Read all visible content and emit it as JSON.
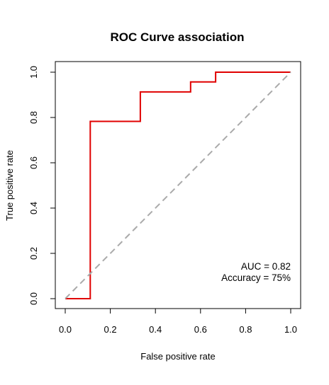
{
  "chart_data": {
    "type": "line",
    "title": "ROC Curve association",
    "xlabel": "False positive rate",
    "ylabel": "True positive rate",
    "xlim": [
      0,
      1
    ],
    "ylim": [
      0,
      1
    ],
    "xticks": [
      0.0,
      0.2,
      0.4,
      0.6,
      0.8,
      1.0
    ],
    "yticks": [
      0.0,
      0.2,
      0.4,
      0.6,
      0.8,
      1.0
    ],
    "xtick_labels": [
      "0.0",
      "0.2",
      "0.4",
      "0.6",
      "0.8",
      "1.0"
    ],
    "ytick_labels": [
      "0.0",
      "0.2",
      "0.4",
      "0.6",
      "0.8",
      "1.0"
    ],
    "grid": false,
    "series": [
      {
        "color": "#e00000",
        "style": "step",
        "x": [
          0.0,
          0.111,
          0.111,
          0.333,
          0.333,
          0.556,
          0.556,
          0.667,
          0.667,
          1.0
        ],
        "y": [
          0.0,
          0.0,
          0.783,
          0.783,
          0.913,
          0.913,
          0.957,
          0.957,
          1.0,
          1.0
        ]
      },
      {
        "color": "#aaaaaa",
        "style": "dashed",
        "x": [
          0,
          1
        ],
        "y": [
          0,
          1
        ]
      }
    ],
    "annotations": [
      {
        "text": "AUC = 0.82"
      },
      {
        "text": "Accuracy = 75%"
      }
    ]
  }
}
